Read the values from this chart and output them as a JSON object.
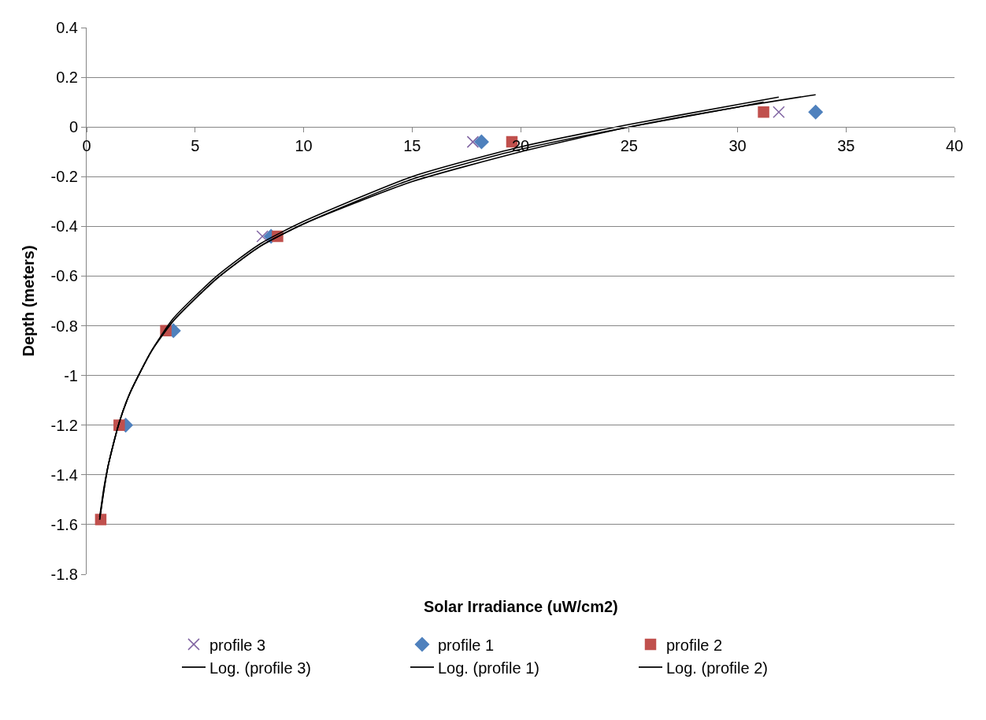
{
  "chart_data": {
    "type": "scatter",
    "xlabel": "Solar Irradiance (uW/cm2)",
    "ylabel": "Depth (meters)",
    "xlim": [
      0,
      40
    ],
    "xticks": [
      0,
      5,
      10,
      15,
      20,
      25,
      30,
      35,
      40
    ],
    "ylim": [
      -1.8,
      0.4
    ],
    "yticks": [
      0.4,
      0.2,
      0,
      -0.2,
      -0.4,
      -0.6,
      -0.8,
      -1,
      -1.2,
      -1.4,
      -1.6,
      -1.8
    ],
    "grid": "y",
    "legend": "bottom",
    "series": [
      {
        "name": "profile 3",
        "marker": "cross",
        "color": "#8064a2",
        "x": [
          null,
          null,
          null,
          8.1,
          17.8,
          31.9
        ],
        "values": [
          null,
          null,
          null,
          -0.44,
          -0.06,
          0.06
        ]
      },
      {
        "name": "profile 1",
        "marker": "diamond",
        "color": "#4f81bd",
        "x": [
          null,
          1.8,
          4.0,
          8.5,
          18.2,
          33.6
        ],
        "values": [
          null,
          -1.2,
          -0.82,
          -0.44,
          -0.06,
          0.06
        ]
      },
      {
        "name": "profile 2",
        "marker": "square",
        "color": "#c0504d",
        "x": [
          0.65,
          1.5,
          3.65,
          8.8,
          19.6,
          31.2
        ],
        "values": [
          -1.58,
          -1.2,
          -0.82,
          -0.44,
          -0.06,
          0.06
        ]
      },
      {
        "name": "Log. (profile 3)",
        "type": "line",
        "marker": "none",
        "color": "#000000",
        "x": [
          0.6,
          0.8,
          1,
          1.5,
          2,
          3,
          4,
          6,
          8,
          10,
          15,
          20,
          25,
          30,
          31.9
        ],
        "values": [
          -1.58,
          -1.46,
          -1.36,
          -1.19,
          -1.07,
          -0.9,
          -0.77,
          -0.6,
          -0.47,
          -0.38,
          -0.2,
          -0.08,
          0.01,
          0.09,
          0.12
        ]
      },
      {
        "name": "Log. (profile 1)",
        "type": "line",
        "marker": "none",
        "color": "#000000",
        "x": [
          0.6,
          0.8,
          1,
          1.5,
          2,
          3,
          4,
          6,
          8,
          10,
          15,
          20,
          25,
          30,
          33.6
        ],
        "values": [
          -1.57,
          -1.45,
          -1.36,
          -1.19,
          -1.07,
          -0.9,
          -0.78,
          -0.61,
          -0.48,
          -0.39,
          -0.22,
          -0.1,
          0,
          0.08,
          0.13
        ]
      },
      {
        "name": "Log. (profile 2)",
        "type": "line",
        "marker": "none",
        "color": "#000000",
        "x": [
          0.6,
          0.8,
          1,
          1.5,
          2,
          3,
          4,
          6,
          8,
          10,
          15,
          20,
          25,
          30,
          31.2
        ],
        "values": [
          -1.58,
          -1.46,
          -1.36,
          -1.19,
          -1.07,
          -0.9,
          -0.78,
          -0.61,
          -0.48,
          -0.39,
          -0.21,
          -0.09,
          0,
          0.08,
          0.1
        ]
      }
    ]
  }
}
